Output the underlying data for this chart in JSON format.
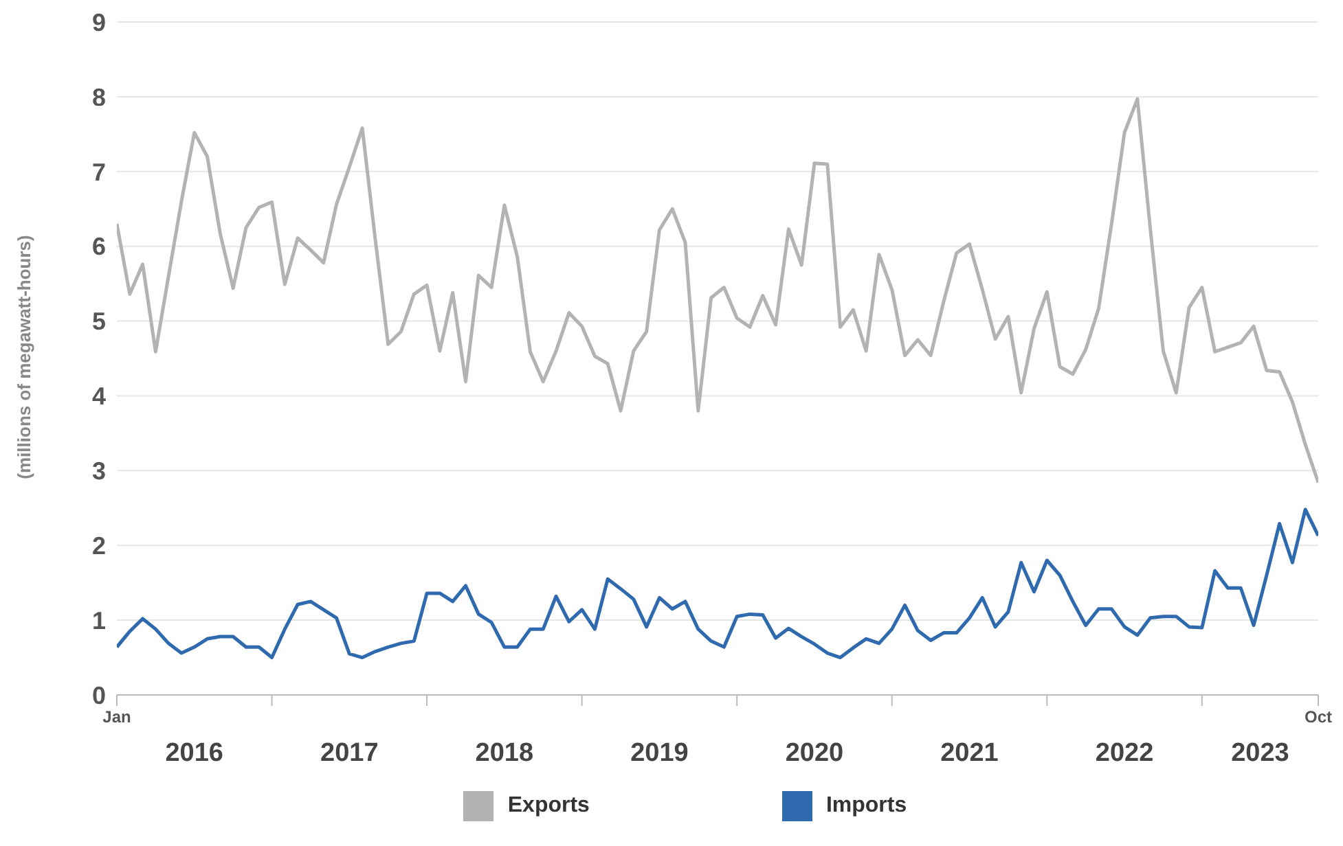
{
  "chart_data": {
    "type": "line",
    "ylabel": "(millions of megawatt-hours)",
    "x": [
      "2016-01",
      "2016-02",
      "2016-03",
      "2016-04",
      "2016-05",
      "2016-06",
      "2016-07",
      "2016-08",
      "2016-09",
      "2016-10",
      "2016-11",
      "2016-12",
      "2017-01",
      "2017-02",
      "2017-03",
      "2017-04",
      "2017-05",
      "2017-06",
      "2017-07",
      "2017-08",
      "2017-09",
      "2017-10",
      "2017-11",
      "2017-12",
      "2018-01",
      "2018-02",
      "2018-03",
      "2018-04",
      "2018-05",
      "2018-06",
      "2018-07",
      "2018-08",
      "2018-09",
      "2018-10",
      "2018-11",
      "2018-12",
      "2019-01",
      "2019-02",
      "2019-03",
      "2019-04",
      "2019-05",
      "2019-06",
      "2019-07",
      "2019-08",
      "2019-09",
      "2019-10",
      "2019-11",
      "2019-12",
      "2020-01",
      "2020-02",
      "2020-03",
      "2020-04",
      "2020-05",
      "2020-06",
      "2020-07",
      "2020-08",
      "2020-09",
      "2020-10",
      "2020-11",
      "2020-12",
      "2021-01",
      "2021-02",
      "2021-03",
      "2021-04",
      "2021-05",
      "2021-06",
      "2021-07",
      "2021-08",
      "2021-09",
      "2021-10",
      "2021-11",
      "2021-12",
      "2022-01",
      "2022-02",
      "2022-03",
      "2022-04",
      "2022-05",
      "2022-06",
      "2022-07",
      "2022-08",
      "2022-09",
      "2022-10",
      "2022-11",
      "2022-12",
      "2023-01",
      "2023-02",
      "2023-03",
      "2023-04",
      "2023-05",
      "2023-06",
      "2023-07",
      "2023-08",
      "2023-09",
      "2023-10"
    ],
    "series": [
      {
        "name": "Exports",
        "color": "#b3b3b3",
        "values": [
          6.3,
          5.36,
          5.76,
          4.59,
          5.6,
          6.6,
          7.52,
          7.2,
          6.17,
          5.44,
          6.25,
          6.52,
          6.59,
          5.49,
          6.11,
          5.95,
          5.78,
          6.56,
          7.06,
          7.58,
          6.1,
          4.69,
          4.86,
          5.36,
          5.48,
          4.6,
          5.38,
          4.19,
          5.61,
          5.45,
          6.55,
          5.86,
          4.59,
          4.19,
          4.6,
          5.11,
          4.93,
          4.53,
          4.43,
          3.8,
          4.6,
          4.86,
          6.22,
          6.5,
          6.05,
          3.8,
          5.31,
          5.45,
          5.04,
          4.92,
          5.34,
          4.95,
          6.23,
          5.75,
          7.11,
          7.1,
          4.92,
          5.15,
          4.6,
          5.89,
          5.42,
          4.54,
          4.75,
          4.54,
          5.26,
          5.91,
          6.03,
          5.42,
          4.76,
          5.06,
          4.04,
          4.9,
          5.39,
          4.39,
          4.29,
          4.62,
          5.17,
          6.3,
          7.52,
          7.97,
          6.23,
          4.6,
          4.04,
          5.18,
          5.45,
          4.59,
          4.65,
          4.71,
          4.93,
          4.34,
          4.32,
          3.92,
          3.35,
          2.84
        ]
      },
      {
        "name": "Imports",
        "color": "#2e6aad",
        "values": [
          0.64,
          0.85,
          1.02,
          0.88,
          0.69,
          0.56,
          0.64,
          0.75,
          0.78,
          0.78,
          0.64,
          0.64,
          0.5,
          0.88,
          1.21,
          1.25,
          1.14,
          1.03,
          0.55,
          0.5,
          0.58,
          0.64,
          0.69,
          0.72,
          1.36,
          1.36,
          1.25,
          1.46,
          1.08,
          0.97,
          0.64,
          0.64,
          0.88,
          0.88,
          1.32,
          0.98,
          1.14,
          0.88,
          1.55,
          1.42,
          1.28,
          0.91,
          1.3,
          1.15,
          1.25,
          0.88,
          0.72,
          0.64,
          1.05,
          1.08,
          1.07,
          0.76,
          0.89,
          0.78,
          0.68,
          0.56,
          0.5,
          0.63,
          0.75,
          0.69,
          0.88,
          1.2,
          0.86,
          0.73,
          0.83,
          0.83,
          1.03,
          1.3,
          0.91,
          1.11,
          1.77,
          1.38,
          1.8,
          1.6,
          1.25,
          0.93,
          1.15,
          1.15,
          0.91,
          0.8,
          1.03,
          1.05,
          1.05,
          0.91,
          0.9,
          1.66,
          1.43,
          1.43,
          0.93,
          1.6,
          2.29,
          1.77,
          2.48,
          2.13
        ]
      }
    ],
    "xlim": [
      "2016-01",
      "2023-10"
    ],
    "xticks": [
      {
        "value": "2016-01",
        "label": "Jan"
      },
      {
        "value": "2017-01",
        "label": null
      },
      {
        "value": "2018-01",
        "label": null
      },
      {
        "value": "2019-01",
        "label": null
      },
      {
        "value": "2020-01",
        "label": null
      },
      {
        "value": "2021-01",
        "label": null
      },
      {
        "value": "2022-01",
        "label": null
      },
      {
        "value": "2023-01",
        "label": null
      },
      {
        "value": "2023-10",
        "label": "Oct"
      }
    ],
    "annotations": [
      "2016",
      "2017",
      "2018",
      "2019",
      "2020",
      "2021",
      "2022",
      "2023"
    ],
    "ylim": [
      0,
      9
    ],
    "yticks": [
      0,
      1,
      2,
      3,
      4,
      5,
      6,
      7,
      8,
      9
    ],
    "grid": "y",
    "legend": "bottom",
    "marker": "none",
    "line_style": "solid"
  }
}
